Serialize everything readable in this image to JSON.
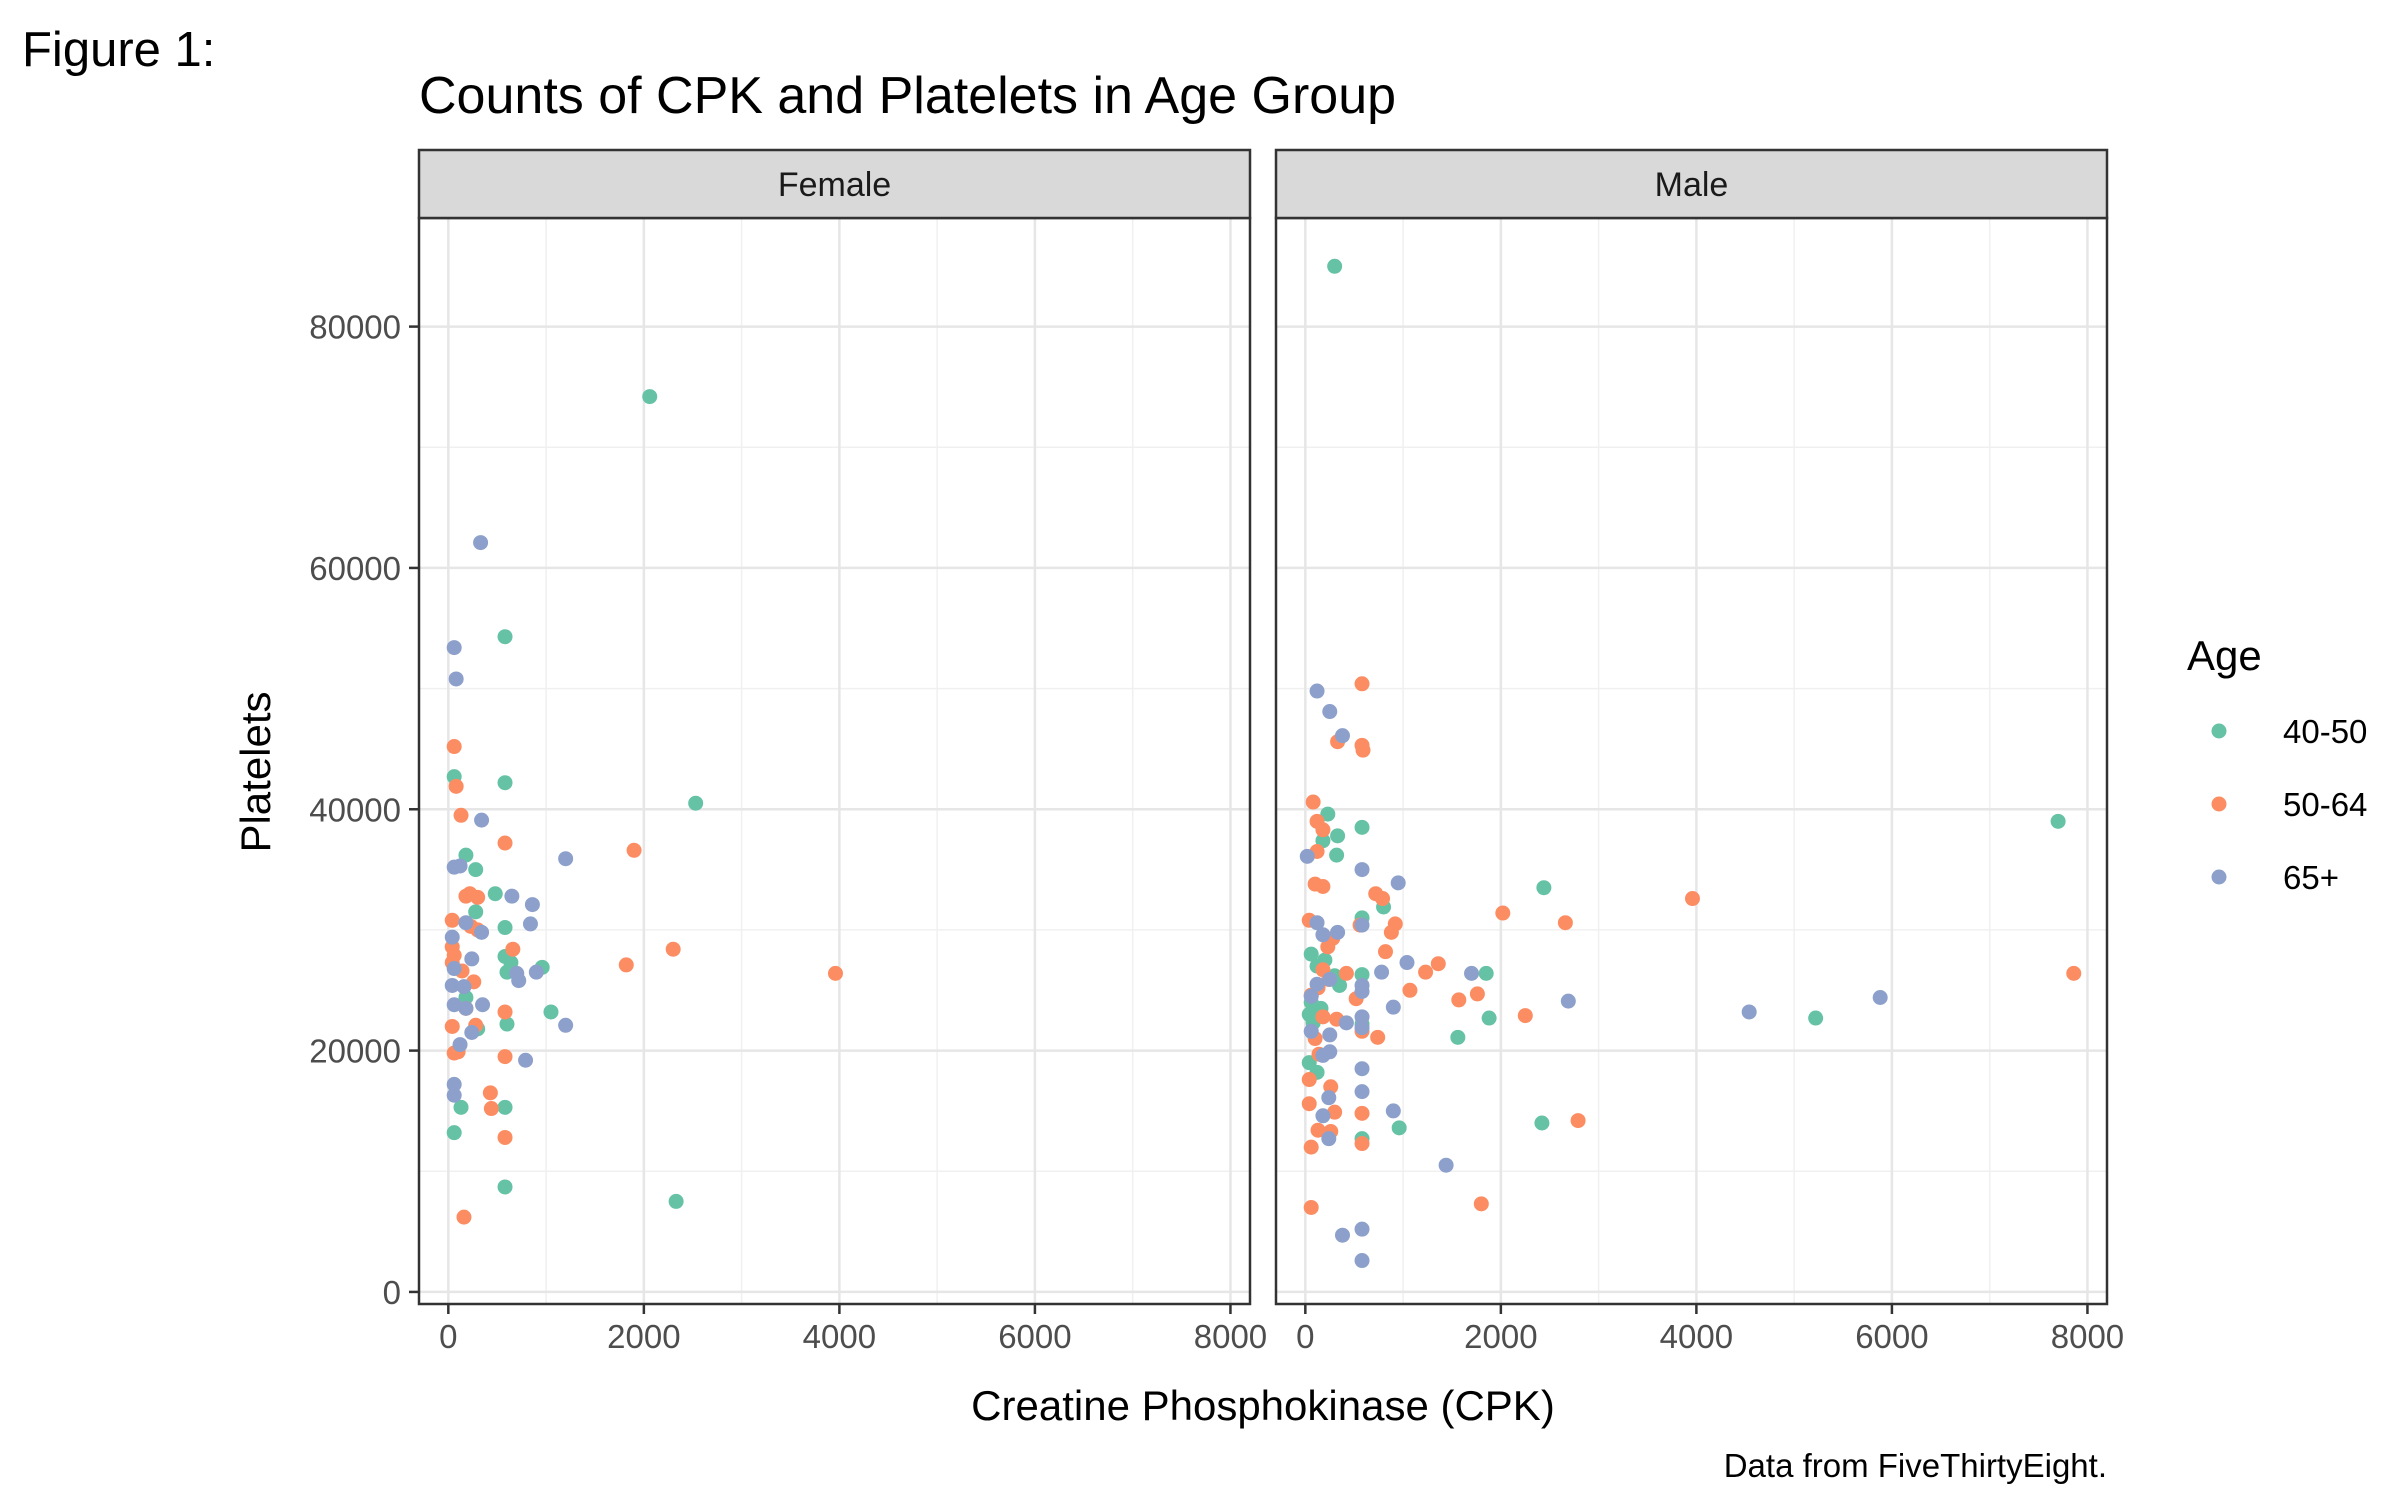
{
  "figure_label": "Figure 1:",
  "chart_data": {
    "type": "scatter",
    "title": "Counts of CPK and Platelets in Age Group",
    "xlabel": "Creatine Phosphokinase (CPK)",
    "ylabel": "Platelets",
    "caption": "Data from FiveThirtyEight.",
    "xlim": [
      -300,
      8200
    ],
    "ylim": [
      -1000,
      89000
    ],
    "xticks": [
      0,
      2000,
      4000,
      6000,
      8000
    ],
    "yticks": [
      0,
      20000,
      40000,
      60000,
      80000
    ],
    "tick_labels_x": [
      "0",
      "2000",
      "4000",
      "6000",
      "8000"
    ],
    "tick_labels_y": [
      "0",
      "20000",
      "40000",
      "60000",
      "80000"
    ],
    "grid": true,
    "legend": {
      "title": "Age",
      "position": "right",
      "entries": [
        {
          "label": "40-50",
          "color": "#66c2a5"
        },
        {
          "label": "50-64",
          "color": "#fc8d62"
        },
        {
          "label": "65+",
          "color": "#8da0cb"
        }
      ]
    },
    "panels": [
      {
        "name": "Female",
        "series": [
          {
            "name": "40-50",
            "color": "#66c2a5",
            "points": [
              [
                2060,
                74200
              ],
              [
                580,
                54300
              ],
              [
                580,
                42200
              ],
              [
                60,
                42700
              ],
              [
                2530,
                40500
              ],
              [
                180,
                36200
              ],
              [
                280,
                35000
              ],
              [
                480,
                33000
              ],
              [
                580,
                30200
              ],
              [
                280,
                31500
              ],
              [
                580,
                27800
              ],
              [
                640,
                27300
              ],
              [
                600,
                26500
              ],
              [
                960,
                26900
              ],
              [
                1050,
                23200
              ],
              [
                180,
                24400
              ],
              [
                600,
                22200
              ],
              [
                300,
                21800
              ],
              [
                130,
                15300
              ],
              [
                580,
                15300
              ],
              [
                60,
                13200
              ],
              [
                580,
                8700
              ],
              [
                2330,
                7500
              ]
            ]
          },
          {
            "name": "50-64",
            "color": "#fc8d62",
            "points": [
              [
                3960,
                26400
              ],
              [
                1900,
                36600
              ],
              [
                2300,
                28400
              ],
              [
                1820,
                27100
              ],
              [
                580,
                37200
              ],
              [
                60,
                45200
              ],
              [
                80,
                41900
              ],
              [
                130,
                39500
              ],
              [
                180,
                32800
              ],
              [
                220,
                33000
              ],
              [
                300,
                32700
              ],
              [
                40,
                30800
              ],
              [
                230,
                30300
              ],
              [
                300,
                30000
              ],
              [
                40,
                28600
              ],
              [
                60,
                27900
              ],
              [
                40,
                27300
              ],
              [
                660,
                28400
              ],
              [
                140,
                26600
              ],
              [
                260,
                25700
              ],
              [
                580,
                23200
              ],
              [
                180,
                23500
              ],
              [
                40,
                22000
              ],
              [
                280,
                22100
              ],
              [
                580,
                19500
              ],
              [
                60,
                19800
              ],
              [
                100,
                19900
              ],
              [
                430,
                16500
              ],
              [
                440,
                15200
              ],
              [
                580,
                12800
              ],
              [
                160,
                6200
              ]
            ]
          },
          {
            "name": "65+",
            "color": "#8da0cb",
            "points": [
              [
                330,
                62100
              ],
              [
                60,
                53400
              ],
              [
                80,
                50800
              ],
              [
                340,
                39100
              ],
              [
                1200,
                35900
              ],
              [
                60,
                35200
              ],
              [
                120,
                35300
              ],
              [
                650,
                32800
              ],
              [
                860,
                32100
              ],
              [
                340,
                29800
              ],
              [
                840,
                30500
              ],
              [
                40,
                29400
              ],
              [
                180,
                30600
              ],
              [
                240,
                27600
              ],
              [
                60,
                26800
              ],
              [
                700,
                26400
              ],
              [
                720,
                25800
              ],
              [
                900,
                26500
              ],
              [
                40,
                25400
              ],
              [
                160,
                25300
              ],
              [
                60,
                23800
              ],
              [
                180,
                23500
              ],
              [
                350,
                23800
              ],
              [
                1200,
                22100
              ],
              [
                240,
                21500
              ],
              [
                120,
                20500
              ],
              [
                790,
                19200
              ],
              [
                60,
                17200
              ],
              [
                60,
                16300
              ]
            ]
          }
        ]
      },
      {
        "name": "Male",
        "series": [
          {
            "name": "40-50",
            "color": "#66c2a5",
            "points": [
              [
                300,
                85000
              ],
              [
                7700,
                39000
              ],
              [
                2440,
                33500
              ],
              [
                5220,
                22700
              ],
              [
                580,
                38500
              ],
              [
                230,
                39600
              ],
              [
                180,
                37400
              ],
              [
                330,
                37800
              ],
              [
                320,
                36200
              ],
              [
                800,
                31900
              ],
              [
                580,
                31000
              ],
              [
                60,
                28000
              ],
              [
                120,
                27000
              ],
              [
                300,
                26200
              ],
              [
                580,
                26300
              ],
              [
                1850,
                26400
              ],
              [
                1880,
                22700
              ],
              [
                1560,
                21100
              ],
              [
                60,
                24000
              ],
              [
                160,
                23500
              ],
              [
                40,
                23000
              ],
              [
                80,
                22300
              ],
              [
                580,
                22200
              ],
              [
                40,
                19000
              ],
              [
                120,
                18200
              ],
              [
                960,
                13600
              ],
              [
                2420,
                14000
              ],
              [
                580,
                12700
              ],
              [
                200,
                27500
              ],
              [
                350,
                25400
              ]
            ]
          },
          {
            "name": "50-64",
            "color": "#fc8d62",
            "points": [
              [
                7860,
                26400
              ],
              [
                3960,
                32600
              ],
              [
                2660,
                30600
              ],
              [
                2020,
                31400
              ],
              [
                2250,
                22900
              ],
              [
                1760,
                24700
              ],
              [
                1800,
                7300
              ],
              [
                2790,
                14200
              ],
              [
                580,
                50400
              ],
              [
                580,
                45300
              ],
              [
                590,
                44900
              ],
              [
                330,
                45600
              ],
              [
                80,
                40600
              ],
              [
                120,
                39000
              ],
              [
                180,
                38300
              ],
              [
                120,
                36500
              ],
              [
                100,
                33800
              ],
              [
                180,
                33600
              ],
              [
                720,
                33000
              ],
              [
                790,
                32600
              ],
              [
                920,
                30500
              ],
              [
                880,
                29800
              ],
              [
                560,
                30400
              ],
              [
                40,
                30800
              ],
              [
                280,
                29300
              ],
              [
                230,
                28600
              ],
              [
                820,
                28200
              ],
              [
                1360,
                27200
              ],
              [
                1230,
                26500
              ],
              [
                420,
                26400
              ],
              [
                180,
                26700
              ],
              [
                240,
                25900
              ],
              [
                130,
                25200
              ],
              [
                60,
                24600
              ],
              [
                1070,
                25000
              ],
              [
                1570,
                24200
              ],
              [
                520,
                24300
              ],
              [
                180,
                22800
              ],
              [
                320,
                22600
              ],
              [
                580,
                21600
              ],
              [
                740,
                21100
              ],
              [
                100,
                21000
              ],
              [
                140,
                19700
              ],
              [
                40,
                17600
              ],
              [
                260,
                17000
              ],
              [
                40,
                15600
              ],
              [
                300,
                14900
              ],
              [
                580,
                14800
              ],
              [
                130,
                13400
              ],
              [
                260,
                13300
              ],
              [
                580,
                12300
              ],
              [
                60,
                12000
              ],
              [
                60,
                7000
              ]
            ]
          },
          {
            "name": "65+",
            "color": "#8da0cb",
            "points": [
              [
                5880,
                24400
              ],
              [
                4540,
                23200
              ],
              [
                2690,
                24100
              ],
              [
                1700,
                26400
              ],
              [
                1440,
                10500
              ],
              [
                120,
                49800
              ],
              [
                250,
                48100
              ],
              [
                380,
                46100
              ],
              [
                20,
                36100
              ],
              [
                580,
                35000
              ],
              [
                950,
                33900
              ],
              [
                120,
                30600
              ],
              [
                330,
                29800
              ],
              [
                180,
                29600
              ],
              [
                580,
                30400
              ],
              [
                1040,
                27300
              ],
              [
                780,
                26500
              ],
              [
                580,
                25400
              ],
              [
                250,
                25900
              ],
              [
                120,
                25500
              ],
              [
                60,
                24500
              ],
              [
                580,
                24900
              ],
              [
                900,
                23600
              ],
              [
                580,
                22800
              ],
              [
                420,
                22300
              ],
              [
                250,
                21300
              ],
              [
                580,
                21900
              ],
              [
                60,
                21600
              ],
              [
                250,
                19900
              ],
              [
                180,
                19600
              ],
              [
                580,
                18500
              ],
              [
                240,
                16100
              ],
              [
                580,
                16600
              ],
              [
                900,
                15000
              ],
              [
                180,
                14600
              ],
              [
                240,
                12700
              ],
              [
                380,
                4700
              ],
              [
                580,
                5200
              ],
              [
                580,
                2600
              ]
            ]
          }
        ]
      }
    ]
  }
}
